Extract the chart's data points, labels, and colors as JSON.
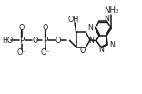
{
  "bg_color": "white",
  "line_color": "#1a1a1a",
  "line_width": 1.1,
  "font_size": 5.8,
  "fig_width": 1.56,
  "fig_height": 1.03,
  "dpi": 100,
  "xlim": [
    0,
    9.5
  ],
  "ylim": [
    0,
    6.3
  ],
  "p1x": 1.35,
  "p1y": 3.6,
  "p2x": 2.95,
  "p2y": 3.6
}
